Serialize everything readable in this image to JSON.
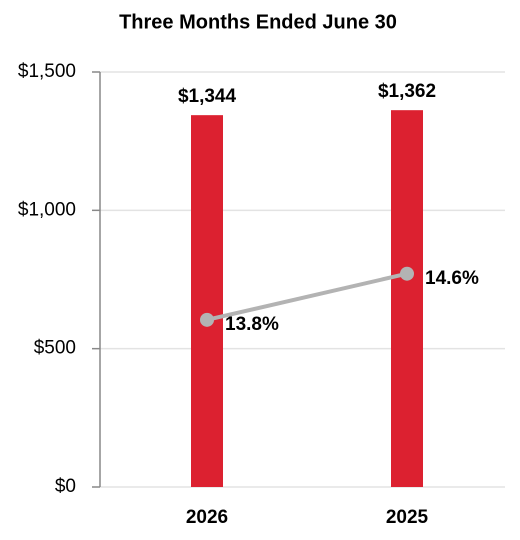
{
  "chart_data": {
    "type": "bar",
    "title": "Three Months Ended June 30",
    "categories": [
      "2026",
      "2025"
    ],
    "series": [
      {
        "type": "bar",
        "color": "#dc2130",
        "values": [
          1344,
          1362
        ],
        "value_labels": [
          "$1,344",
          "$1,362"
        ]
      },
      {
        "type": "line",
        "axis": "y2",
        "color": "#b3b3b3",
        "values": [
          13.8,
          14.6
        ],
        "value_labels": [
          "13.8%",
          "14.6%"
        ]
      }
    ],
    "ylim": [
      0,
      1500
    ],
    "yticks": [
      {
        "value": 0,
        "label": "$0"
      },
      {
        "value": 500,
        "label": "$500"
      },
      {
        "value": 1000,
        "label": "$1,000"
      },
      {
        "value": 1500,
        "label": "$1,500"
      }
    ],
    "y2lim": [
      10.9,
      18.1
    ],
    "grid": true
  }
}
